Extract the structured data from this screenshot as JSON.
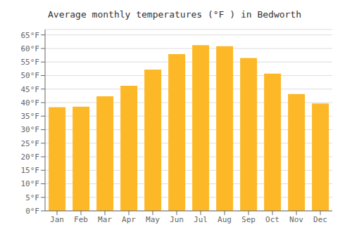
{
  "chart_data": {
    "type": "bar",
    "title": "Average monthly temperatures (°F ) in Bedworth",
    "categories": [
      "Jan",
      "Feb",
      "Mar",
      "Apr",
      "May",
      "Jun",
      "Jul",
      "Aug",
      "Sep",
      "Oct",
      "Nov",
      "Dec"
    ],
    "values": [
      38.3,
      38.5,
      42.3,
      46.2,
      52.2,
      57.9,
      61.2,
      60.8,
      56.5,
      50.7,
      43.2,
      39.7
    ],
    "color": "#FDB827",
    "ylim": [
      0,
      67
    ],
    "yticks": [
      {
        "value": 0,
        "label": "0°F"
      },
      {
        "value": 5,
        "label": "5°F"
      },
      {
        "value": 10,
        "label": "10°F"
      },
      {
        "value": 15,
        "label": "15°F"
      },
      {
        "value": 20,
        "label": "20°F"
      },
      {
        "value": 25,
        "label": "25°F"
      },
      {
        "value": 30,
        "label": "30°F"
      },
      {
        "value": 35,
        "label": "35°F"
      },
      {
        "value": 40,
        "label": "40°F"
      },
      {
        "value": 45,
        "label": "45°F"
      },
      {
        "value": 50,
        "label": "50°F"
      },
      {
        "value": 55,
        "label": "55°F"
      },
      {
        "value": 60,
        "label": "60°F"
      },
      {
        "value": 65,
        "label": "65°F"
      }
    ],
    "grid": true
  }
}
